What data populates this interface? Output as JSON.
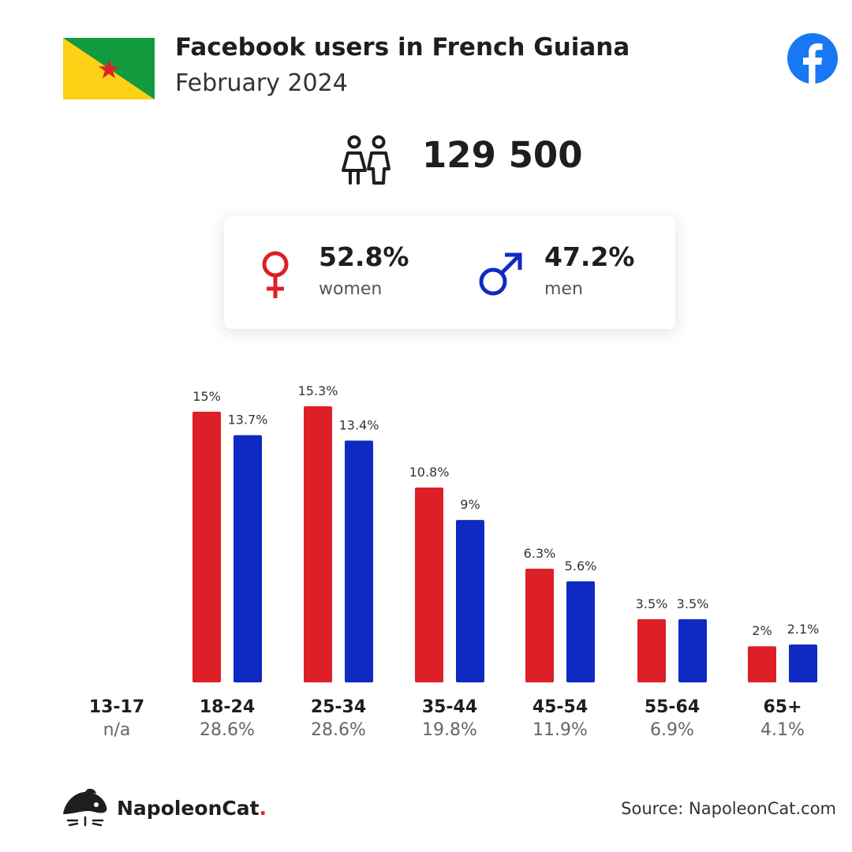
{
  "header": {
    "title": "Facebook users in French Guiana",
    "subtitle": "February 2024"
  },
  "total": {
    "users": "129 500"
  },
  "gender": {
    "women": {
      "percent": "52.8%",
      "label": "women"
    },
    "men": {
      "percent": "47.2%",
      "label": "men"
    }
  },
  "colors": {
    "women": "#dd1f28",
    "men": "#0f2ac2",
    "facebook": "#1877f2"
  },
  "icons": {
    "flag": "french-guiana-flag",
    "brand": "facebook-logo",
    "total": "people-icon",
    "women": "female-symbol-icon",
    "men": "male-symbol-icon"
  },
  "chart_data": {
    "type": "bar",
    "categories": [
      "13-17",
      "18-24",
      "25-34",
      "35-44",
      "45-54",
      "55-64",
      "65+"
    ],
    "category_totals": [
      "n/a",
      "28.6%",
      "28.6%",
      "19.8%",
      "11.9%",
      "6.9%",
      "4.1%"
    ],
    "series": [
      {
        "name": "women",
        "values": [
          null,
          15,
          15.3,
          10.8,
          6.3,
          3.5,
          2
        ],
        "labels": [
          "",
          "15%",
          "15.3%",
          "10.8%",
          "6.3%",
          "3.5%",
          "2%"
        ]
      },
      {
        "name": "men",
        "values": [
          null,
          13.7,
          13.4,
          9,
          5.6,
          3.5,
          2.1
        ],
        "labels": [
          "",
          "13.7%",
          "13.4%",
          "9%",
          "5.6%",
          "3.5%",
          "2.1%"
        ]
      }
    ],
    "ylim": [
      0,
      15.3
    ],
    "grid": false,
    "legend": "none"
  },
  "footer": {
    "brand": "NapoleonCat",
    "brand_dot": ".",
    "source": "Source: NapoleonCat.com"
  }
}
